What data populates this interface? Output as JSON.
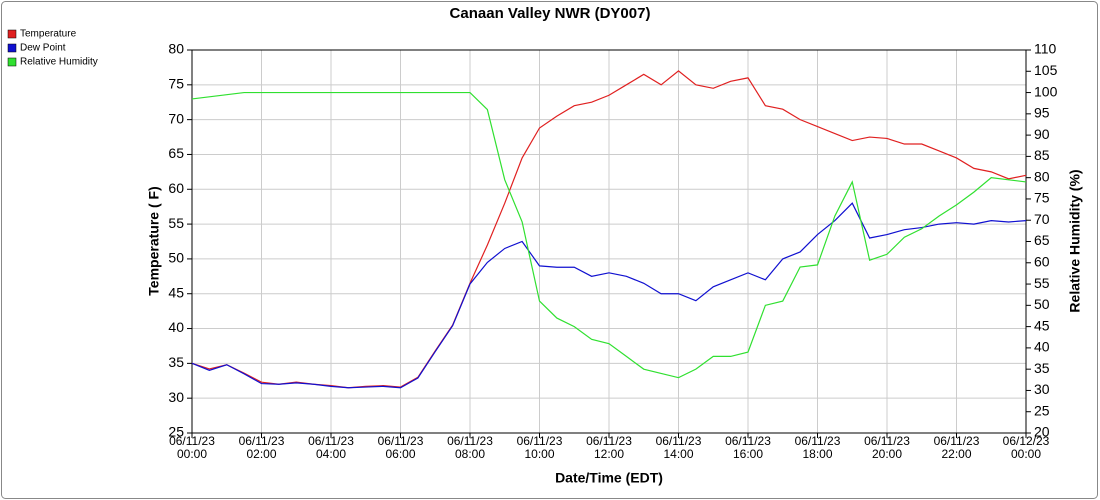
{
  "chart_data": {
    "type": "line",
    "title": "Canaan Valley NWR (DY007)",
    "x_label": "Date/Time (EDT)",
    "y_label": "Temperature ( F)",
    "y2_label": "Relative Humidity (%)",
    "legend": "top-left",
    "grid": true,
    "xlim": [
      "06/11/23 00:00",
      "06/12/23 00:00"
    ],
    "xticks": [
      "06/11/23 00:00",
      "06/11/23 02:00",
      "06/11/23 04:00",
      "06/11/23 06:00",
      "06/11/23 08:00",
      "06/11/23 10:00",
      "06/11/23 12:00",
      "06/11/23 14:00",
      "06/11/23 16:00",
      "06/11/23 18:00",
      "06/11/23 20:00",
      "06/11/23 22:00",
      "06/12/23 00:00"
    ],
    "ylim": [
      25,
      80
    ],
    "yticks": [
      25,
      30,
      35,
      40,
      45,
      50,
      55,
      60,
      65,
      70,
      75,
      80
    ],
    "y2lim": [
      20,
      110
    ],
    "y2ticks": [
      20,
      25,
      30,
      35,
      40,
      45,
      50,
      55,
      60,
      65,
      70,
      75,
      80,
      85,
      90,
      95,
      100,
      105,
      110
    ],
    "x": [
      "06/11/23 00:00",
      "06/11/23 00:30",
      "06/11/23 01:00",
      "06/11/23 01:30",
      "06/11/23 02:00",
      "06/11/23 02:30",
      "06/11/23 03:00",
      "06/11/23 03:30",
      "06/11/23 04:00",
      "06/11/23 04:30",
      "06/11/23 05:00",
      "06/11/23 05:30",
      "06/11/23 06:00",
      "06/11/23 06:30",
      "06/11/23 07:00",
      "06/11/23 07:30",
      "06/11/23 08:00",
      "06/11/23 08:30",
      "06/11/23 09:00",
      "06/11/23 09:30",
      "06/11/23 10:00",
      "06/11/23 10:30",
      "06/11/23 11:00",
      "06/11/23 11:30",
      "06/11/23 12:00",
      "06/11/23 12:30",
      "06/11/23 13:00",
      "06/11/23 13:30",
      "06/11/23 14:00",
      "06/11/23 14:30",
      "06/11/23 15:00",
      "06/11/23 15:30",
      "06/11/23 16:00",
      "06/11/23 16:30",
      "06/11/23 17:00",
      "06/11/23 17:30",
      "06/11/23 18:00",
      "06/11/23 18:30",
      "06/11/23 19:00",
      "06/11/23 19:30",
      "06/11/23 20:00",
      "06/11/23 20:30",
      "06/11/23 21:00",
      "06/11/23 21:30",
      "06/11/23 22:00",
      "06/11/23 22:30",
      "06/11/23 23:00",
      "06/11/23 23:30",
      "06/12/23 00:00"
    ],
    "series": [
      {
        "name": "Temperature",
        "color": "#e02020",
        "values": [
          35,
          34.2,
          34.8,
          33.6,
          32.3,
          32,
          32.3,
          32,
          31.8,
          31.5,
          31.7,
          31.8,
          31.6,
          33,
          36.8,
          40.5,
          46.5,
          52,
          58,
          64.5,
          68.8,
          70.5,
          72,
          72.5,
          73.5,
          75,
          76.5,
          75,
          77,
          75,
          74.5,
          75.5,
          76,
          72,
          71.5,
          70,
          69,
          68,
          67,
          67.5,
          67.3,
          66.5,
          66.5,
          65.5,
          64.5,
          63,
          62.5,
          61.5,
          62
        ]
      },
      {
        "name": "Dew Point",
        "color": "#1010d0",
        "values": [
          35,
          34,
          34.8,
          33.5,
          32.1,
          32,
          32.2,
          32,
          31.7,
          31.5,
          31.6,
          31.7,
          31.5,
          32.9,
          36.7,
          40.4,
          46.4,
          49.5,
          51.5,
          52.5,
          49,
          48.8,
          48.8,
          47.5,
          48,
          47.5,
          46.5,
          45,
          45,
          44,
          46,
          47,
          48,
          47,
          50,
          51,
          53.5,
          55.5,
          58,
          53,
          53.5,
          54.2,
          54.5,
          55,
          55.2,
          55,
          55.5,
          55.3,
          55.5
        ]
      },
      {
        "name": "Relative Humidity",
        "color": "#30e030",
        "axis": "y2",
        "values": [
          98.5,
          99,
          99.5,
          100,
          100,
          100,
          100,
          100,
          100,
          100,
          100,
          100,
          100,
          100,
          100,
          100,
          100,
          96,
          79.5,
          69.6,
          51,
          47,
          45,
          42,
          41,
          38,
          35,
          34,
          33,
          35,
          38,
          38,
          39,
          50,
          51,
          59,
          59.5,
          71,
          79,
          60.6,
          62,
          66,
          68,
          71,
          73.6,
          76.6,
          80,
          79.5,
          79
        ]
      }
    ]
  }
}
